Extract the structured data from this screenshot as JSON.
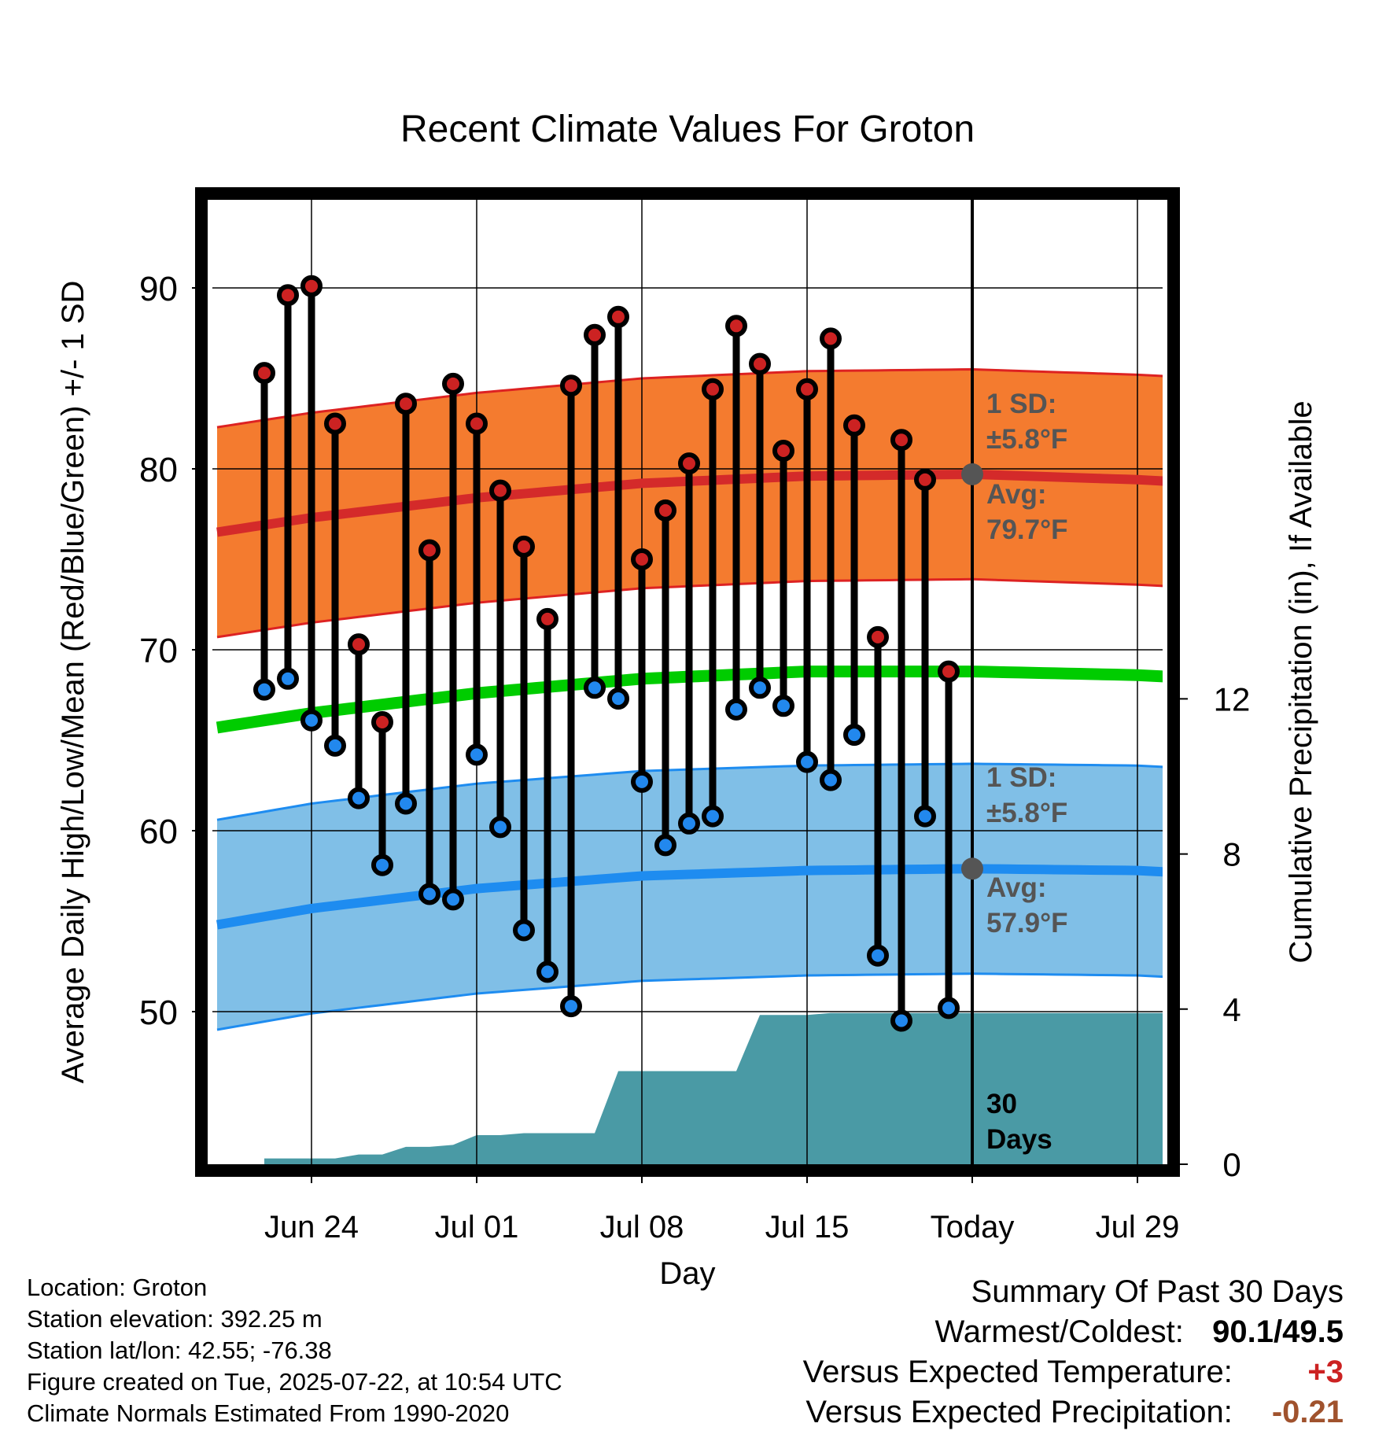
{
  "chart_data": {
    "type": "line",
    "title": "Recent Climate Values For Groton",
    "xlabel": "Day",
    "ylabel": "Average Daily High/Low/Mean (Red/Blue/Green) +/- 1 SD",
    "y2label": "Cumulative Precipitation (in), If Available",
    "x_tick_labels": [
      "Jun 24",
      "Jul 01",
      "Jul 08",
      "Jul 15",
      "Today",
      "Jul 29"
    ],
    "x_range": [
      "Jun 20",
      "Aug 01"
    ],
    "today": "Jul 22",
    "y_range": [
      41.5,
      95
    ],
    "y_ticks": [
      50,
      60,
      70,
      80,
      90
    ],
    "y2_range": [
      0,
      19
    ],
    "y2_ticks": [
      0,
      4,
      8,
      12
    ],
    "grid": true,
    "dates": [
      "Jun 22",
      "Jun 23",
      "Jun 24",
      "Jun 25",
      "Jun 26",
      "Jun 27",
      "Jun 28",
      "Jun 29",
      "Jun 30",
      "Jul 01",
      "Jul 02",
      "Jul 03",
      "Jul 04",
      "Jul 05",
      "Jul 06",
      "Jul 07",
      "Jul 08",
      "Jul 09",
      "Jul 10",
      "Jul 11",
      "Jul 12",
      "Jul 13",
      "Jul 14",
      "Jul 15",
      "Jul 16",
      "Jul 17",
      "Jul 18",
      "Jul 19",
      "Jul 20",
      "Jul 21"
    ],
    "series": [
      {
        "name": "High",
        "color": "#cc2222",
        "values": [
          85.3,
          89.6,
          90.1,
          82.5,
          70.3,
          66.0,
          83.6,
          75.5,
          84.7,
          82.5,
          78.8,
          75.7,
          71.7,
          84.6,
          87.4,
          88.4,
          75.0,
          77.7,
          80.3,
          84.4,
          87.9,
          85.8,
          81.0,
          84.4,
          87.2,
          82.4,
          70.7,
          81.6,
          79.4,
          68.8
        ]
      },
      {
        "name": "Low",
        "color": "#2288ee",
        "values": [
          67.8,
          68.4,
          66.1,
          64.7,
          61.8,
          58.1,
          61.5,
          56.5,
          56.2,
          64.2,
          60.2,
          54.5,
          52.2,
          50.3,
          67.9,
          67.3,
          62.7,
          59.2,
          60.4,
          60.8,
          66.7,
          67.9,
          66.9,
          63.8,
          62.8,
          65.3,
          53.1,
          49.5,
          60.8,
          50.2
        ]
      }
    ],
    "normals": {
      "x": [
        "Jun 20",
        "Jun 24",
        "Jul 01",
        "Jul 08",
        "Jul 15",
        "Jul 22",
        "Jul 29",
        "Aug 01"
      ],
      "high_avg": [
        76.5,
        77.3,
        78.4,
        79.2,
        79.6,
        79.7,
        79.4,
        79.2
      ],
      "low_avg": [
        54.8,
        55.7,
        56.8,
        57.5,
        57.8,
        57.9,
        57.8,
        57.6
      ],
      "mean_avg": [
        65.7,
        66.5,
        67.6,
        68.4,
        68.8,
        68.8,
        68.6,
        68.4
      ],
      "sd": 5.8
    },
    "precip": {
      "dates": [
        "Jun 22",
        "Jun 23",
        "Jun 24",
        "Jun 25",
        "Jun 26",
        "Jun 27",
        "Jun 28",
        "Jun 29",
        "Jun 30",
        "Jul 01",
        "Jul 02",
        "Jul 03",
        "Jul 04",
        "Jul 05",
        "Jul 06",
        "Jul 07",
        "Jul 08",
        "Jul 09",
        "Jul 10",
        "Jul 11",
        "Jul 12",
        "Jul 13",
        "Jul 14",
        "Jul 15",
        "Jul 16",
        "Jul 17",
        "Jul 18",
        "Jul 19",
        "Jul 20",
        "Jul 21",
        "Aug 01"
      ],
      "values": [
        0.15,
        0.15,
        0.15,
        0.15,
        0.25,
        0.25,
        0.45,
        0.45,
        0.5,
        0.75,
        0.75,
        0.8,
        0.8,
        0.8,
        0.8,
        2.4,
        2.4,
        2.4,
        2.4,
        2.4,
        2.4,
        3.85,
        3.85,
        3.85,
        3.9,
        3.9,
        3.9,
        3.9,
        3.9,
        3.9,
        3.9
      ]
    },
    "annotations": [
      {
        "label": "1 SD:",
        "value": "±5.8°F",
        "color": "#555555"
      },
      {
        "label": "Avg:",
        "value": "79.7°F",
        "color": "#555555"
      },
      {
        "label": "1 SD:",
        "value": "±5.8°F",
        "color": "#555555"
      },
      {
        "label": "Avg:",
        "value": "57.9°F",
        "color": "#555555"
      },
      {
        "label": "30",
        "value": "Days",
        "color": "#000000"
      }
    ],
    "colors": {
      "high_band": "#f47b2f",
      "high_line": "#d42a2a",
      "high_edge": "#dd2222",
      "low_band": "#80bfe7",
      "low_line": "#1e8cf0",
      "low_edge": "#1e8cf0",
      "mean_line": "#00cc00",
      "precip": "#4a9aa5",
      "high_dot": "#cc2222",
      "low_dot": "#2288ee"
    }
  },
  "footer": {
    "location": "Location: Groton",
    "elevation": "Station elevation: 392.25 m",
    "latlon": "Station lat/lon: 42.55; -76.38",
    "created": "Figure created on Tue, 2025-07-22, at 10:54 UTC",
    "normals": "Climate Normals Estimated From 1990-2020"
  },
  "summary": {
    "title": "Summary Of Past 30 Days",
    "warm_cold_label": "Warmest/Coldest:",
    "warmest": "90.1",
    "coldest": "49.5",
    "temp_label": "Versus Expected Temperature:",
    "temp_value": "+3",
    "precip_label": "Versus Expected Precipitation:",
    "precip_value": "-0.21",
    "temp_color": "#cc2222",
    "precip_color": "#a0522d"
  }
}
